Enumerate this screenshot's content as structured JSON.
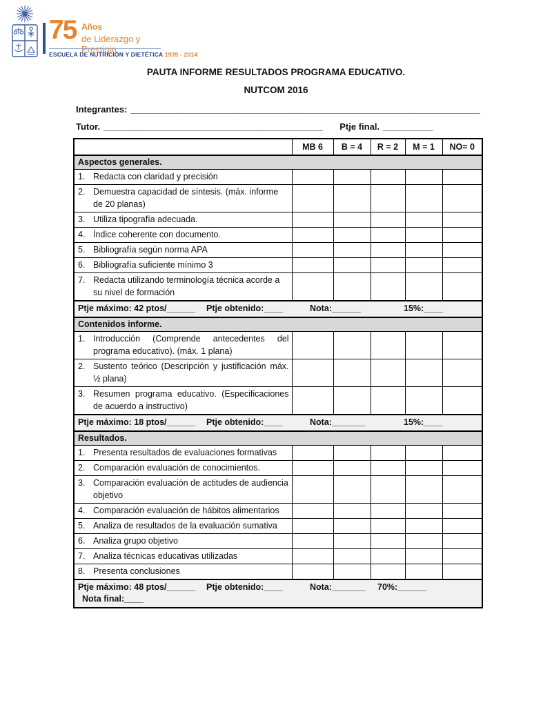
{
  "logo": {
    "years": "75",
    "anos": "Años",
    "tagline": "de Liderazgo y Prestigio",
    "school": "ESCUELA DE NUTRICIÓN Y DIETÉTICA",
    "dates": "1939 - 2014"
  },
  "title": {
    "line1": "PAUTA INFORME RESULTADOS PROGRAMA EDUCATIVO.",
    "line2": "NUTCOM 2016"
  },
  "fields": {
    "integrantes_label": "Integrantes:",
    "integrantes_value": "______________________________________________________________________",
    "tutor_label": "Tutor.",
    "tutor_value": "____________________________________________",
    "ptje_final_label": "Ptje final.",
    "ptje_final_value": "__________"
  },
  "table": {
    "score_headers": [
      "MB 6",
      "B = 4",
      "R = 2",
      "M = 1",
      "NO= 0"
    ],
    "sections": [
      {
        "name": "Aspectos generales.",
        "items": [
          {
            "num": "1.",
            "text": "Redacta con claridad y precisión"
          },
          {
            "num": "2.",
            "text": "Demuestra capacidad de síntesis. (máx. informe de 20 planas)"
          },
          {
            "num": "3.",
            "text": "Utiliza tipografía adecuada."
          },
          {
            "num": "4.",
            "text": "Índice coherente con documento."
          },
          {
            "num": "5.",
            "text": "Bibliografía según norma APA"
          },
          {
            "num": "6.",
            "text": "Bibliografía suficiente mínimo 3"
          },
          {
            "num": "7.",
            "text": "Redacta utilizando terminología técnica acorde a su nivel de formación"
          }
        ],
        "summary": {
          "max": "Ptje máximo: 42 ptos/______",
          "obtained": "Ptje obtenido:____",
          "nota": "Nota:______",
          "pct": "15%:____"
        }
      },
      {
        "name": "Contenidos informe.",
        "justify": true,
        "items": [
          {
            "num": "1.",
            "text": "Introducción (Comprende antecedentes del programa educativo). (máx. 1 plana)"
          },
          {
            "num": "2.",
            "text": "Sustento teórico  (Descripción y justificación máx. ½ plana)"
          },
          {
            "num": "3.",
            "text": "Resumen programa educativo. (Especificaciones de acuerdo a instructivo)"
          }
        ],
        "summary": {
          "max": "Ptje máximo: 18 ptos/______",
          "obtained": "Ptje obtenido:____",
          "nota": "Nota:_______",
          "pct": "15%:____"
        }
      },
      {
        "name": "Resultados.",
        "items": [
          {
            "num": "1.",
            "text": "Presenta resultados de evaluaciones formativas"
          },
          {
            "num": "2.",
            "text": "Comparación evaluación de conocimientos."
          },
          {
            "num": "3.",
            "text": "Comparación evaluación de actitudes de audiencia objetivo"
          },
          {
            "num": "4.",
            "text": "Comparación evaluación de hábitos alimentarios"
          },
          {
            "num": "5.",
            "text": "Analiza de resultados de la evaluación sumativa"
          },
          {
            "num": "6.",
            "text": "Analiza grupo objetivo"
          },
          {
            "num": "7.",
            "text": "Analiza técnicas educativas utilizadas"
          },
          {
            "num": "8.",
            "text": "Presenta conclusiones"
          }
        ],
        "summary": {
          "alt": true,
          "max": "Ptje máximo: 48 ptos/______",
          "obtained": "Ptje obtenido:____",
          "nota": "Nota:_______",
          "pct": "70%:______",
          "nota_final": "Nota final:____"
        }
      }
    ]
  },
  "colors": {
    "logo_orange": "#E8832D",
    "logo_blue": "#3D5CA6",
    "logo_dark_blue": "#27427C",
    "section_header_bg": "#D8D8D8",
    "summary_bg": "#F1F1F1",
    "border": "#000000"
  }
}
